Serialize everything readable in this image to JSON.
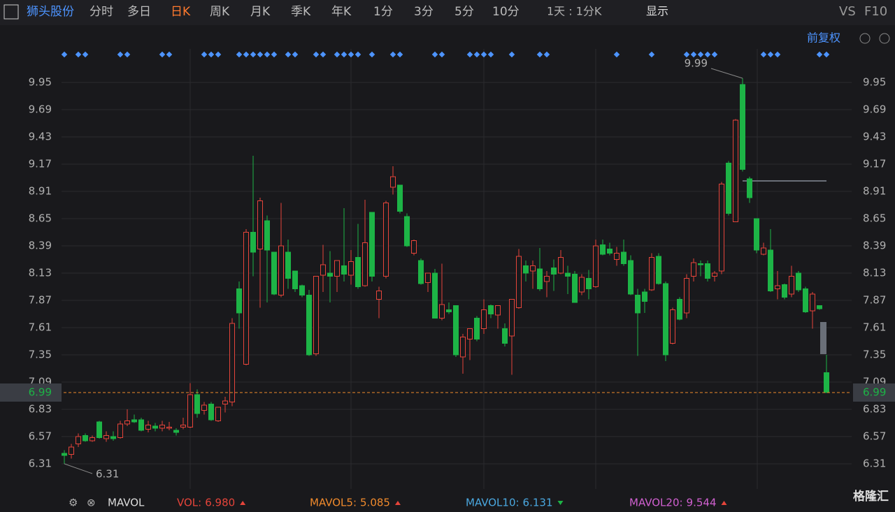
{
  "toolbar": {
    "stock": "狮头股份",
    "tabs": [
      "分时",
      "多日",
      "日K",
      "周K",
      "月K",
      "季K",
      "年K",
      "1分",
      "3分",
      "5分",
      "10分"
    ],
    "active": "日K",
    "period": "1天 : 1分K",
    "display": "显示",
    "vs": "VS",
    "f10": "F10",
    "adjust": "前复权"
  },
  "chart_data": {
    "type": "candlestick",
    "open": [
      6.41,
      6.4,
      6.5,
      6.58,
      6.53,
      6.71,
      6.55,
      6.57,
      6.56,
      6.69,
      6.73,
      6.73,
      6.64,
      6.67,
      6.65,
      6.65,
      6.63,
      6.66,
      6.66,
      6.97,
      6.82,
      6.88,
      6.72,
      6.88,
      6.9,
      7.98,
      7.26,
      8.52,
      8.36,
      8.63,
      8.33,
      7.92,
      8.33,
      8.15,
      8.01,
      7.92,
      7.36,
      8.11,
      8.13,
      8.1,
      8.2,
      8.11,
      8.28,
      8.01,
      8.71,
      7.88,
      8.1,
      8.95,
      8.97,
      8.67,
      8.32,
      8.25,
      8.04,
      8.13,
      7.7,
      7.78,
      7.82,
      7.33,
      7.5,
      7.7,
      7.6,
      7.82,
      7.73,
      7.6,
      7.53,
      7.8,
      8.2,
      8.15,
      8.17,
      8.05,
      8.18,
      8.13,
      8.13,
      8.12,
      7.95,
      8.08,
      8.0,
      8.4,
      8.36,
      8.26,
      8.33,
      8.25,
      7.92,
      7.95,
      7.97,
      8.29,
      8.03,
      7.46,
      7.88,
      7.75,
      8.1,
      8.22,
      8.22,
      8.1,
      8.15,
      9.18,
      8.62,
      9.93,
      9.03,
      8.65,
      8.31,
      8.35,
      7.98,
      8.02,
      7.93,
      8.13,
      7.98,
      7.77,
      7.82,
      7.18
    ],
    "high": [
      6.44,
      6.5,
      6.6,
      6.6,
      6.58,
      6.72,
      6.62,
      6.62,
      6.72,
      6.83,
      6.78,
      6.75,
      6.72,
      6.7,
      6.72,
      6.71,
      6.65,
      6.75,
      7.08,
      7.02,
      6.9,
      6.9,
      6.85,
      6.95,
      7.7,
      8.05,
      8.55,
      9.25,
      8.85,
      8.68,
      8.33,
      8.8,
      8.45,
      8.15,
      8.02,
      7.97,
      8.1,
      8.4,
      8.34,
      8.25,
      8.75,
      8.35,
      8.6,
      8.83,
      8.71,
      8.0,
      8.82,
      9.15,
      8.97,
      8.7,
      8.45,
      8.27,
      8.13,
      8.17,
      8.22,
      7.85,
      7.82,
      7.55,
      7.6,
      7.72,
      7.88,
      7.83,
      7.82,
      7.65,
      7.88,
      8.36,
      8.25,
      8.25,
      8.37,
      8.15,
      8.26,
      8.35,
      8.2,
      8.15,
      8.12,
      8.16,
      8.45,
      8.45,
      8.42,
      8.38,
      8.45,
      8.3,
      7.98,
      7.98,
      8.32,
      8.32,
      8.05,
      7.8,
      7.9,
      8.12,
      8.27,
      8.25,
      8.25,
      8.15,
      9.0,
      9.2,
      9.6,
      9.99,
      9.05,
      8.65,
      8.42,
      8.55,
      8.15,
      8.03,
      8.2,
      8.15,
      8.0,
      7.95,
      7.82,
      7.35
    ],
    "low": [
      6.31,
      6.36,
      6.47,
      6.52,
      6.52,
      6.55,
      6.52,
      6.53,
      6.55,
      6.67,
      6.7,
      6.62,
      6.61,
      6.62,
      6.62,
      6.63,
      6.58,
      6.64,
      6.65,
      6.75,
      6.78,
      6.72,
      6.71,
      6.8,
      6.86,
      7.6,
      7.25,
      8.1,
      7.8,
      7.85,
      7.92,
      7.9,
      7.98,
      7.95,
      7.9,
      7.34,
      7.34,
      7.95,
      7.85,
      7.95,
      8.05,
      8.02,
      7.98,
      8.0,
      8.05,
      7.7,
      8.08,
      8.88,
      8.7,
      8.38,
      8.3,
      8.02,
      7.95,
      7.7,
      7.68,
      7.74,
      7.33,
      7.17,
      7.3,
      7.48,
      7.55,
      7.7,
      7.6,
      7.43,
      7.16,
      7.79,
      8.05,
      7.98,
      7.96,
      7.9,
      7.96,
      8.12,
      7.93,
      7.85,
      7.92,
      7.88,
      7.99,
      8.3,
      8.3,
      8.2,
      8.2,
      7.92,
      7.34,
      7.75,
      7.96,
      8.02,
      7.29,
      7.45,
      7.68,
      7.7,
      8.05,
      8.1,
      8.05,
      8.05,
      8.12,
      8.68,
      8.62,
      9.1,
      8.8,
      8.32,
      8.3,
      7.95,
      7.88,
      7.88,
      7.9,
      7.95,
      7.75,
      7.6,
      7.78,
      6.99
    ],
    "close": [
      6.39,
      6.47,
      6.57,
      6.53,
      6.56,
      6.56,
      6.58,
      6.55,
      6.69,
      6.72,
      6.71,
      6.63,
      6.68,
      6.65,
      6.68,
      6.66,
      6.61,
      6.68,
      6.97,
      6.79,
      6.87,
      6.73,
      6.85,
      6.91,
      7.65,
      7.75,
      8.52,
      8.33,
      8.82,
      8.35,
      7.93,
      8.39,
      8.08,
      7.98,
      7.92,
      7.35,
      8.1,
      8.21,
      8.1,
      8.25,
      8.12,
      8.24,
      8.0,
      8.42,
      8.1,
      7.96,
      8.8,
      9.05,
      8.72,
      8.39,
      8.44,
      8.03,
      8.13,
      7.7,
      7.83,
      7.76,
      7.35,
      7.52,
      7.6,
      7.5,
      7.78,
      7.74,
      7.82,
      7.46,
      7.88,
      8.29,
      8.13,
      8.2,
      7.98,
      8.1,
      8.12,
      8.28,
      8.1,
      7.85,
      8.09,
      7.98,
      8.39,
      8.31,
      8.32,
      8.32,
      8.22,
      7.93,
      7.75,
      7.86,
      8.28,
      8.03,
      7.35,
      7.78,
      7.69,
      8.08,
      8.23,
      8.21,
      8.08,
      8.13,
      8.98,
      8.7,
      9.59,
      9.12,
      8.85,
      8.35,
      8.37,
      7.96,
      8.01,
      7.9,
      8.1,
      7.97,
      7.76,
      7.93,
      7.79,
      6.99
    ],
    "up_color": "#e5443a",
    "down_color": "#1db446",
    "ylim": [
      6.07,
      10.27
    ],
    "yticks": [
      6.31,
      6.57,
      6.83,
      7.09,
      7.35,
      7.61,
      7.87,
      8.13,
      8.39,
      8.65,
      8.91,
      9.17,
      9.43,
      9.69,
      9.95
    ],
    "high_label": "9.99",
    "low_label": "6.31",
    "last_price": 6.99
  },
  "indicators": {
    "name": "MAVOL",
    "items": [
      {
        "label": "VOL:",
        "value": "6.980",
        "color": "#e5443a"
      },
      {
        "label": "MAVOL5:",
        "value": "5.085",
        "color": "#f08a2c"
      },
      {
        "label": "MAVOL10:",
        "value": "6.131",
        "color": "#4aa8e0"
      },
      {
        "label": "MAVOL20:",
        "value": "9.544",
        "color": "#d060d0"
      }
    ]
  },
  "logo": "格隆汇"
}
